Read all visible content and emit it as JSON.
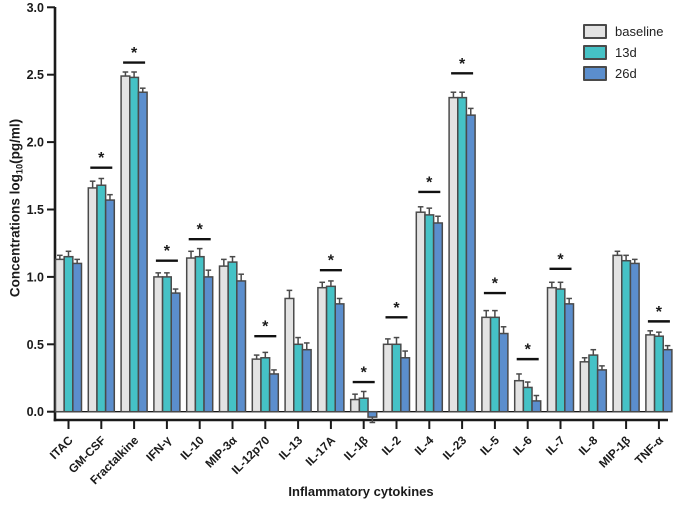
{
  "chart_data": {
    "type": "bar",
    "title": "",
    "xlabel": "Inflammatory cytokines",
    "ylabel": "Concentrations log10(pg/ml)",
    "ylabel_parts": {
      "prefix": "Concentrations log",
      "sub": "10",
      "suffix": "(pg/ml)"
    },
    "ylim": [
      -0.06,
      3.0
    ],
    "yticks": [
      0.0,
      0.5,
      1.0,
      1.5,
      2.0,
      2.5,
      3.0
    ],
    "grid": false,
    "legend_position": "top-right",
    "categories": [
      "ITAC",
      "GM-CSF",
      "Fractalkine",
      "IFN-γ",
      "IL-10",
      "MIP-3α",
      "IL-12p70",
      "IL-13",
      "IL-17A",
      "IL-1β",
      "IL-2",
      "IL-4",
      "IL-23",
      "IL-5",
      "IL-6",
      "IL-7",
      "IL-8",
      "MIP-1β",
      "TNF-α"
    ],
    "series": [
      {
        "name": "baseline",
        "color": "#e3e3e3",
        "values": [
          1.13,
          1.66,
          2.49,
          1.0,
          1.14,
          1.08,
          0.39,
          0.84,
          0.92,
          0.09,
          0.5,
          1.48,
          2.33,
          0.7,
          0.23,
          0.92,
          0.37,
          1.16,
          0.57
        ],
        "errors": [
          0.03,
          0.05,
          0.03,
          0.03,
          0.05,
          0.05,
          0.03,
          0.06,
          0.04,
          0.04,
          0.04,
          0.04,
          0.04,
          0.05,
          0.05,
          0.04,
          0.03,
          0.03,
          0.03
        ]
      },
      {
        "name": "13d",
        "color": "#45c2c6",
        "values": [
          1.15,
          1.68,
          2.48,
          1.0,
          1.15,
          1.11,
          0.4,
          0.5,
          0.93,
          0.1,
          0.5,
          1.46,
          2.33,
          0.7,
          0.18,
          0.91,
          0.42,
          1.12,
          0.56
        ],
        "errors": [
          0.04,
          0.05,
          0.04,
          0.03,
          0.06,
          0.04,
          0.04,
          0.05,
          0.04,
          0.05,
          0.05,
          0.05,
          0.04,
          0.05,
          0.04,
          0.05,
          0.04,
          0.04,
          0.03
        ]
      },
      {
        "name": "26d",
        "color": "#5b8ecd",
        "values": [
          1.1,
          1.57,
          2.37,
          0.88,
          1.0,
          0.97,
          0.28,
          0.46,
          0.8,
          -0.04,
          0.4,
          1.4,
          2.2,
          0.58,
          0.08,
          0.8,
          0.31,
          1.1,
          0.46
        ],
        "errors": [
          0.03,
          0.04,
          0.03,
          0.03,
          0.05,
          0.05,
          0.03,
          0.05,
          0.04,
          0.04,
          0.05,
          0.05,
          0.05,
          0.05,
          0.04,
          0.04,
          0.03,
          0.03,
          0.03
        ]
      }
    ],
    "significance": [
      {
        "category": "GM-CSF",
        "label": "*",
        "line_y": 1.81
      },
      {
        "category": "Fractalkine",
        "label": "*",
        "line_y": 2.59
      },
      {
        "category": "IFN-γ",
        "label": "*",
        "line_y": 1.12
      },
      {
        "category": "IL-10",
        "label": "*",
        "line_y": 1.28
      },
      {
        "category": "IL-12p70",
        "label": "*",
        "line_y": 0.56
      },
      {
        "category": "IL-17A",
        "label": "*",
        "line_y": 1.05
      },
      {
        "category": "IL-1β",
        "label": "*",
        "line_y": 0.22
      },
      {
        "category": "IL-2",
        "label": "*",
        "line_y": 0.7
      },
      {
        "category": "IL-4",
        "label": "*",
        "line_y": 1.63
      },
      {
        "category": "IL-23",
        "label": "*",
        "line_y": 2.51
      },
      {
        "category": "IL-5",
        "label": "*",
        "line_y": 0.88
      },
      {
        "category": "IL-6",
        "label": "*",
        "line_y": 0.39
      },
      {
        "category": "IL-7",
        "label": "*",
        "line_y": 1.06
      },
      {
        "category": "TNF-α",
        "label": "*",
        "line_y": 0.67
      }
    ],
    "colors": {
      "axis": "#1a1a1a",
      "bar_border": "#4a4a4a",
      "error_bar": "#4a4a4a",
      "significance": "#111111",
      "tick_label": "#1a1a1a"
    }
  }
}
